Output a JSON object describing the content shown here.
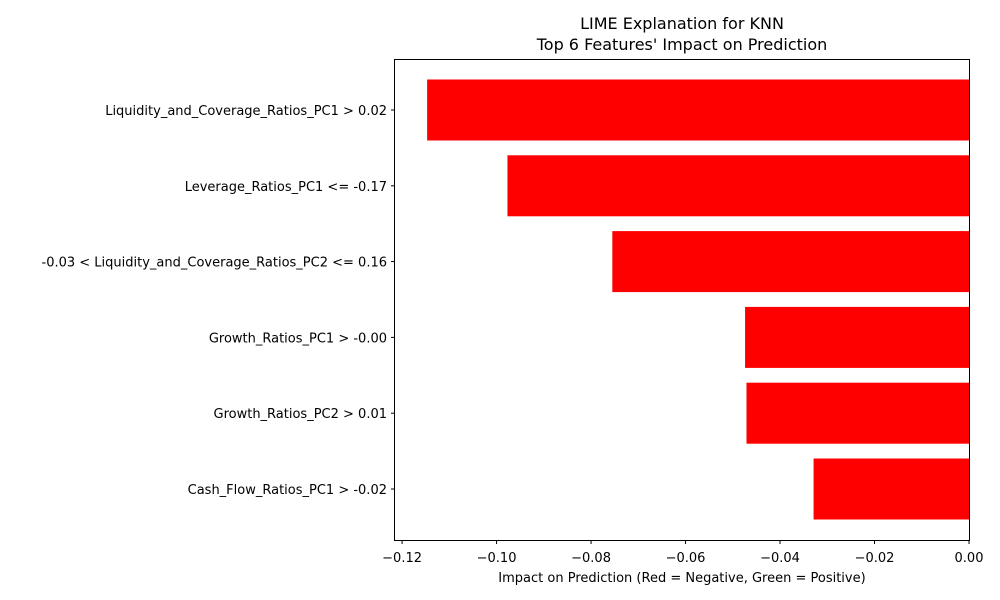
{
  "chart_data": {
    "type": "bar",
    "orientation": "horizontal",
    "title": "LIME Explanation for KNN",
    "subtitle": "Top 6 Features' Impact on Prediction",
    "xlabel": "Impact on Prediction (Red = Negative, Green = Positive)",
    "ylabel": "",
    "categories": [
      "Liquidity_and_Coverage_Ratios_PC1 > 0.02",
      "Leverage_Ratios_PC1 <= -0.17",
      "-0.03 < Liquidity_and_Coverage_Ratios_PC2 <= 0.16",
      "Growth_Ratios_PC1 > -0.00",
      "Growth_Ratios_PC2 > 0.01",
      "Cash_Flow_Ratios_PC1 > -0.02"
    ],
    "values": [
      -0.1147,
      -0.0977,
      -0.0755,
      -0.0474,
      -0.0471,
      -0.0329
    ],
    "bar_color": "#ff0000",
    "xlim": [
      -0.1215,
      0.0
    ],
    "xticks": [
      -0.12,
      -0.1,
      -0.08,
      -0.06,
      -0.04,
      -0.02,
      0.0
    ],
    "xtick_labels": [
      "−0.12",
      "−0.10",
      "−0.08",
      "−0.06",
      "−0.04",
      "−0.02",
      "0.00"
    ],
    "grid": false,
    "legend": "none"
  }
}
